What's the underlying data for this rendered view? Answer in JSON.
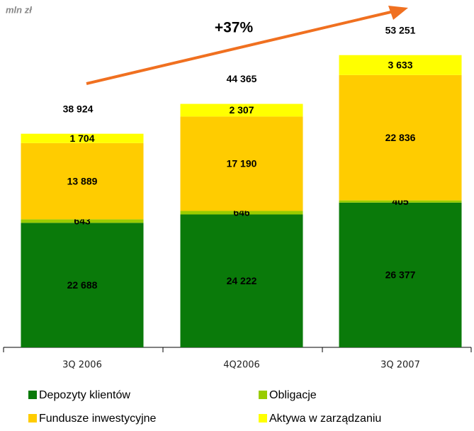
{
  "chart_data": {
    "type": "stacked_bar",
    "unit_label": "mln zł",
    "annotation": "+37%",
    "categories": [
      "3Q 2006",
      "4Q2006",
      "3Q 2007"
    ],
    "series": [
      {
        "name": "Depozyty klientów",
        "color": "#0a7a0a",
        "values": [
          22688,
          24222,
          26377
        ],
        "value_labels": [
          "22 688",
          "24 222",
          "26 377"
        ]
      },
      {
        "name": "Obligacje",
        "color": "#99cc00",
        "values": [
          643,
          646,
          405
        ],
        "value_labels": [
          "643",
          "646",
          "405"
        ]
      },
      {
        "name": "Fundusze inwestycyjne",
        "color": "#ffcc00",
        "values": [
          13889,
          17190,
          22836
        ],
        "value_labels": [
          "13 889",
          "17 190",
          "22 836"
        ]
      },
      {
        "name": "Aktywa w zarządzaniu",
        "color": "#ffff00",
        "values": [
          1704,
          2307,
          3633
        ],
        "value_labels": [
          "1 704",
          "2 307",
          "3 633"
        ]
      }
    ],
    "totals": [
      38924,
      44365,
      53251
    ],
    "total_labels": [
      "38 924",
      "44 365",
      "53 251"
    ],
    "ylim": [
      0,
      62000
    ]
  }
}
